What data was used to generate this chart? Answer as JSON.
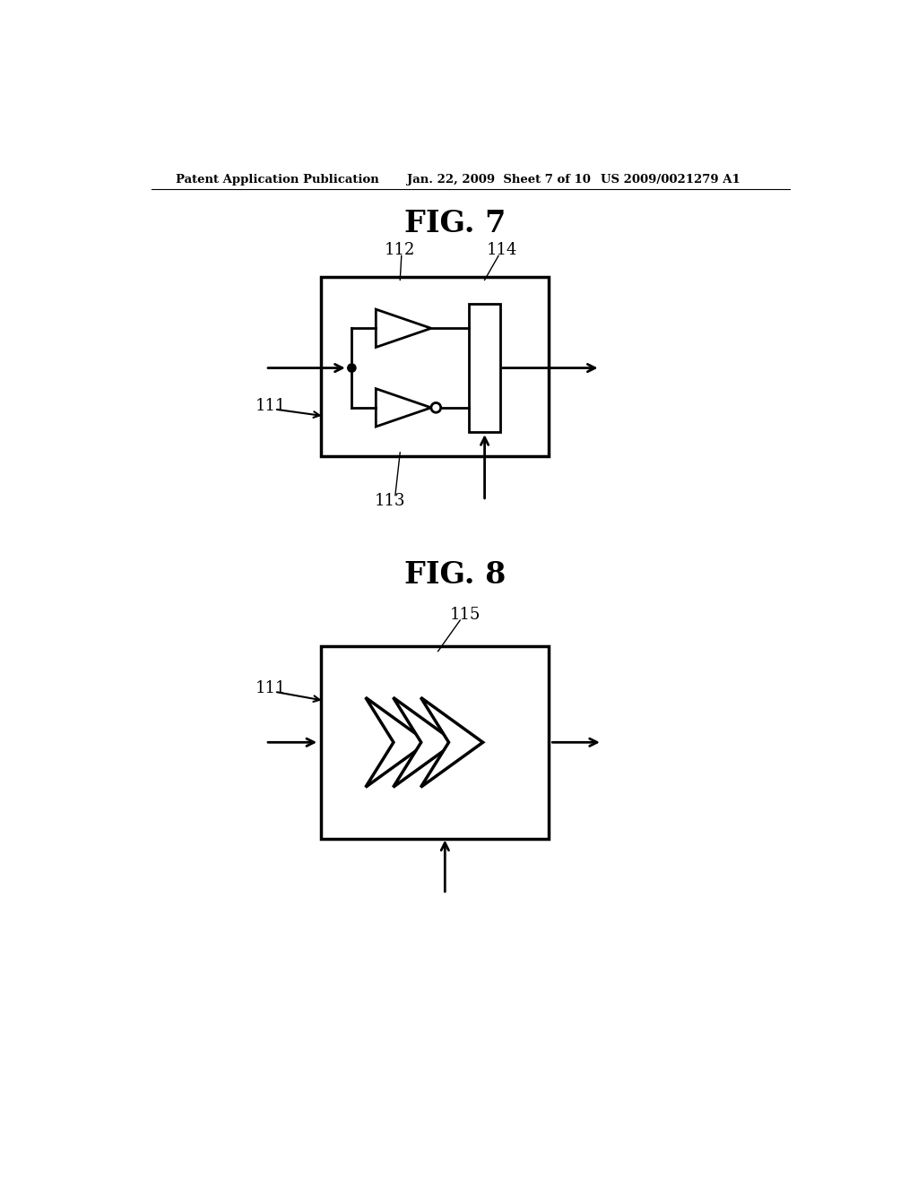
{
  "bg_color": "#ffffff",
  "header_left": "Patent Application Publication",
  "header_mid": "Jan. 22, 2009  Sheet 7 of 10",
  "header_right": "US 2009/0021279 A1",
  "fig7_title": "FIG. 7",
  "fig8_title": "FIG. 8",
  "label_111_fig7": "111",
  "label_112": "112",
  "label_113": "113",
  "label_114": "114",
  "label_111_fig8": "111",
  "label_115": "115"
}
